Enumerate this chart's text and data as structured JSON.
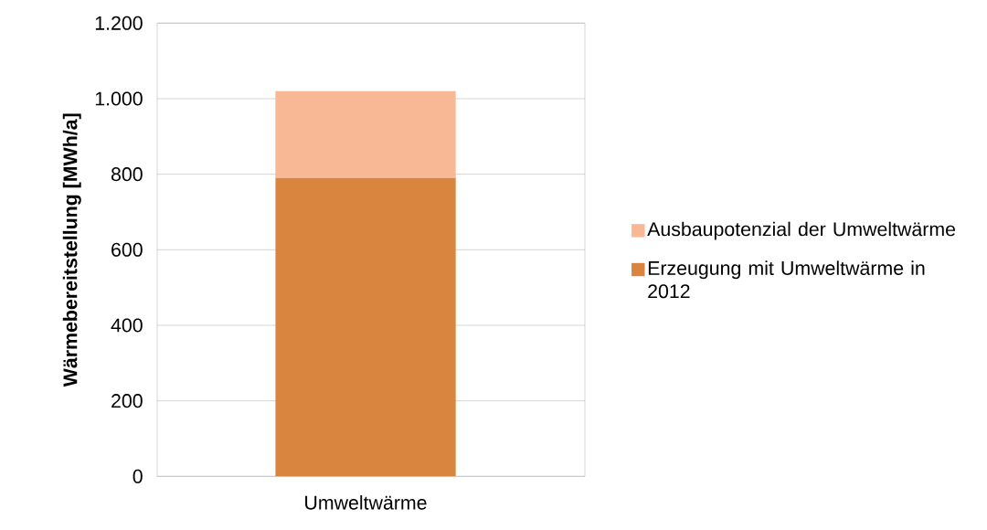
{
  "chart_data": {
    "type": "bar",
    "stacked": true,
    "ylabel": "Wärmebereitstellung [MWh/a]",
    "categories": [
      "Umweltwärme"
    ],
    "series": [
      {
        "name": "Erzeugung mit Umweltwärme in 2012",
        "color": "#d9843f",
        "values": [
          790
        ]
      },
      {
        "name": "Ausbaupotenzial der Umweltwärme",
        "color": "#f8b895",
        "values": [
          230
        ]
      }
    ],
    "ylim": [
      0,
      1200
    ],
    "yticks": [
      0,
      200,
      400,
      600,
      800,
      {
        "value": 1000,
        "label": "1.000"
      },
      {
        "value": 1200,
        "label": "1.200"
      }
    ],
    "grid": "y",
    "legend": "right"
  }
}
